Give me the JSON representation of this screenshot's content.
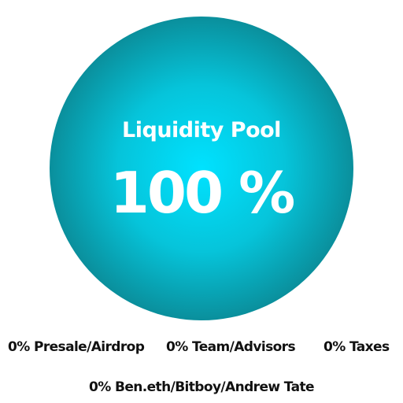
{
  "chart_data": {
    "type": "pie",
    "slices": [
      {
        "label": "Liquidity Pool",
        "value": 100,
        "display": "100 %"
      }
    ],
    "legend": [
      "0% Presale/Airdrop",
      "0% Team/Advisors",
      "0% Taxes",
      "0% Ben.eth/Bitboy/Andrew Tate"
    ],
    "colors": {
      "center": "#00e2ff",
      "edge": "#0a8f9c",
      "label": "#ffffff",
      "legend_text": "#111111"
    }
  }
}
